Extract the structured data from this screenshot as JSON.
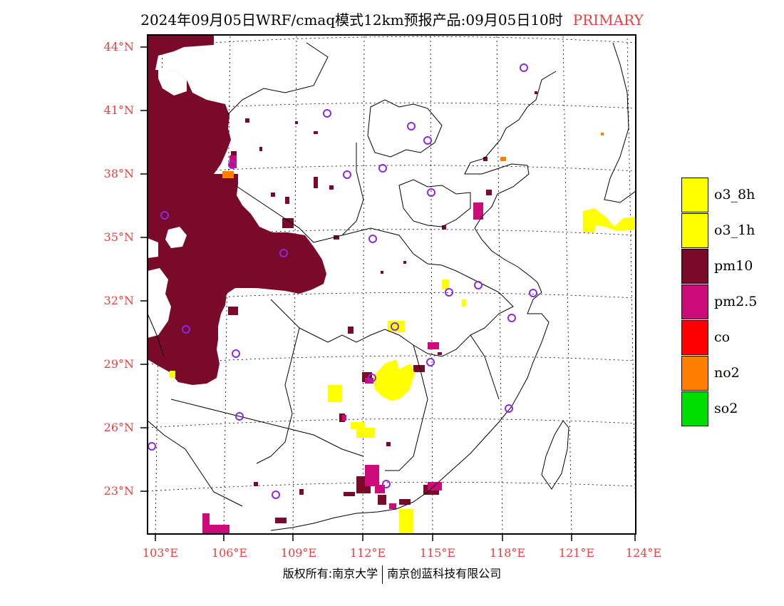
{
  "title": {
    "text": "2024年09月05日WRF/cmaq模式12km预报产品:09月05日10时",
    "tag": "PRIMARY"
  },
  "axes": {
    "lat_labels": [
      "44°N",
      "41°N",
      "38°N",
      "35°N",
      "32°N",
      "29°N",
      "26°N",
      "23°N"
    ],
    "lon_labels": [
      "103°E",
      "106°E",
      "109°E",
      "112°E",
      "115°E",
      "118°E",
      "121°E",
      "124°E"
    ],
    "label_color": "#e8403f"
  },
  "legend": [
    {
      "label": "o3_8h",
      "color": "#ffff00"
    },
    {
      "label": "o3_1h",
      "color": "#ffff00"
    },
    {
      "label": "pm10",
      "color": "#7a0a2a"
    },
    {
      "label": "pm2.5",
      "color": "#cc0a78"
    },
    {
      "label": "co",
      "color": "#ff0000"
    },
    {
      "label": "no2",
      "color": "#ff8000"
    },
    {
      "label": "so2",
      "color": "#00dd00"
    }
  ],
  "footer": {
    "left": "版权所有:南京大学",
    "right": "南京创蓝科技有限公司"
  },
  "colors": {
    "pm10": "#7a0a2a",
    "pm25": "#cc0a78",
    "o3": "#ffff00",
    "no2": "#ff8000",
    "station": "#8a2be2"
  }
}
